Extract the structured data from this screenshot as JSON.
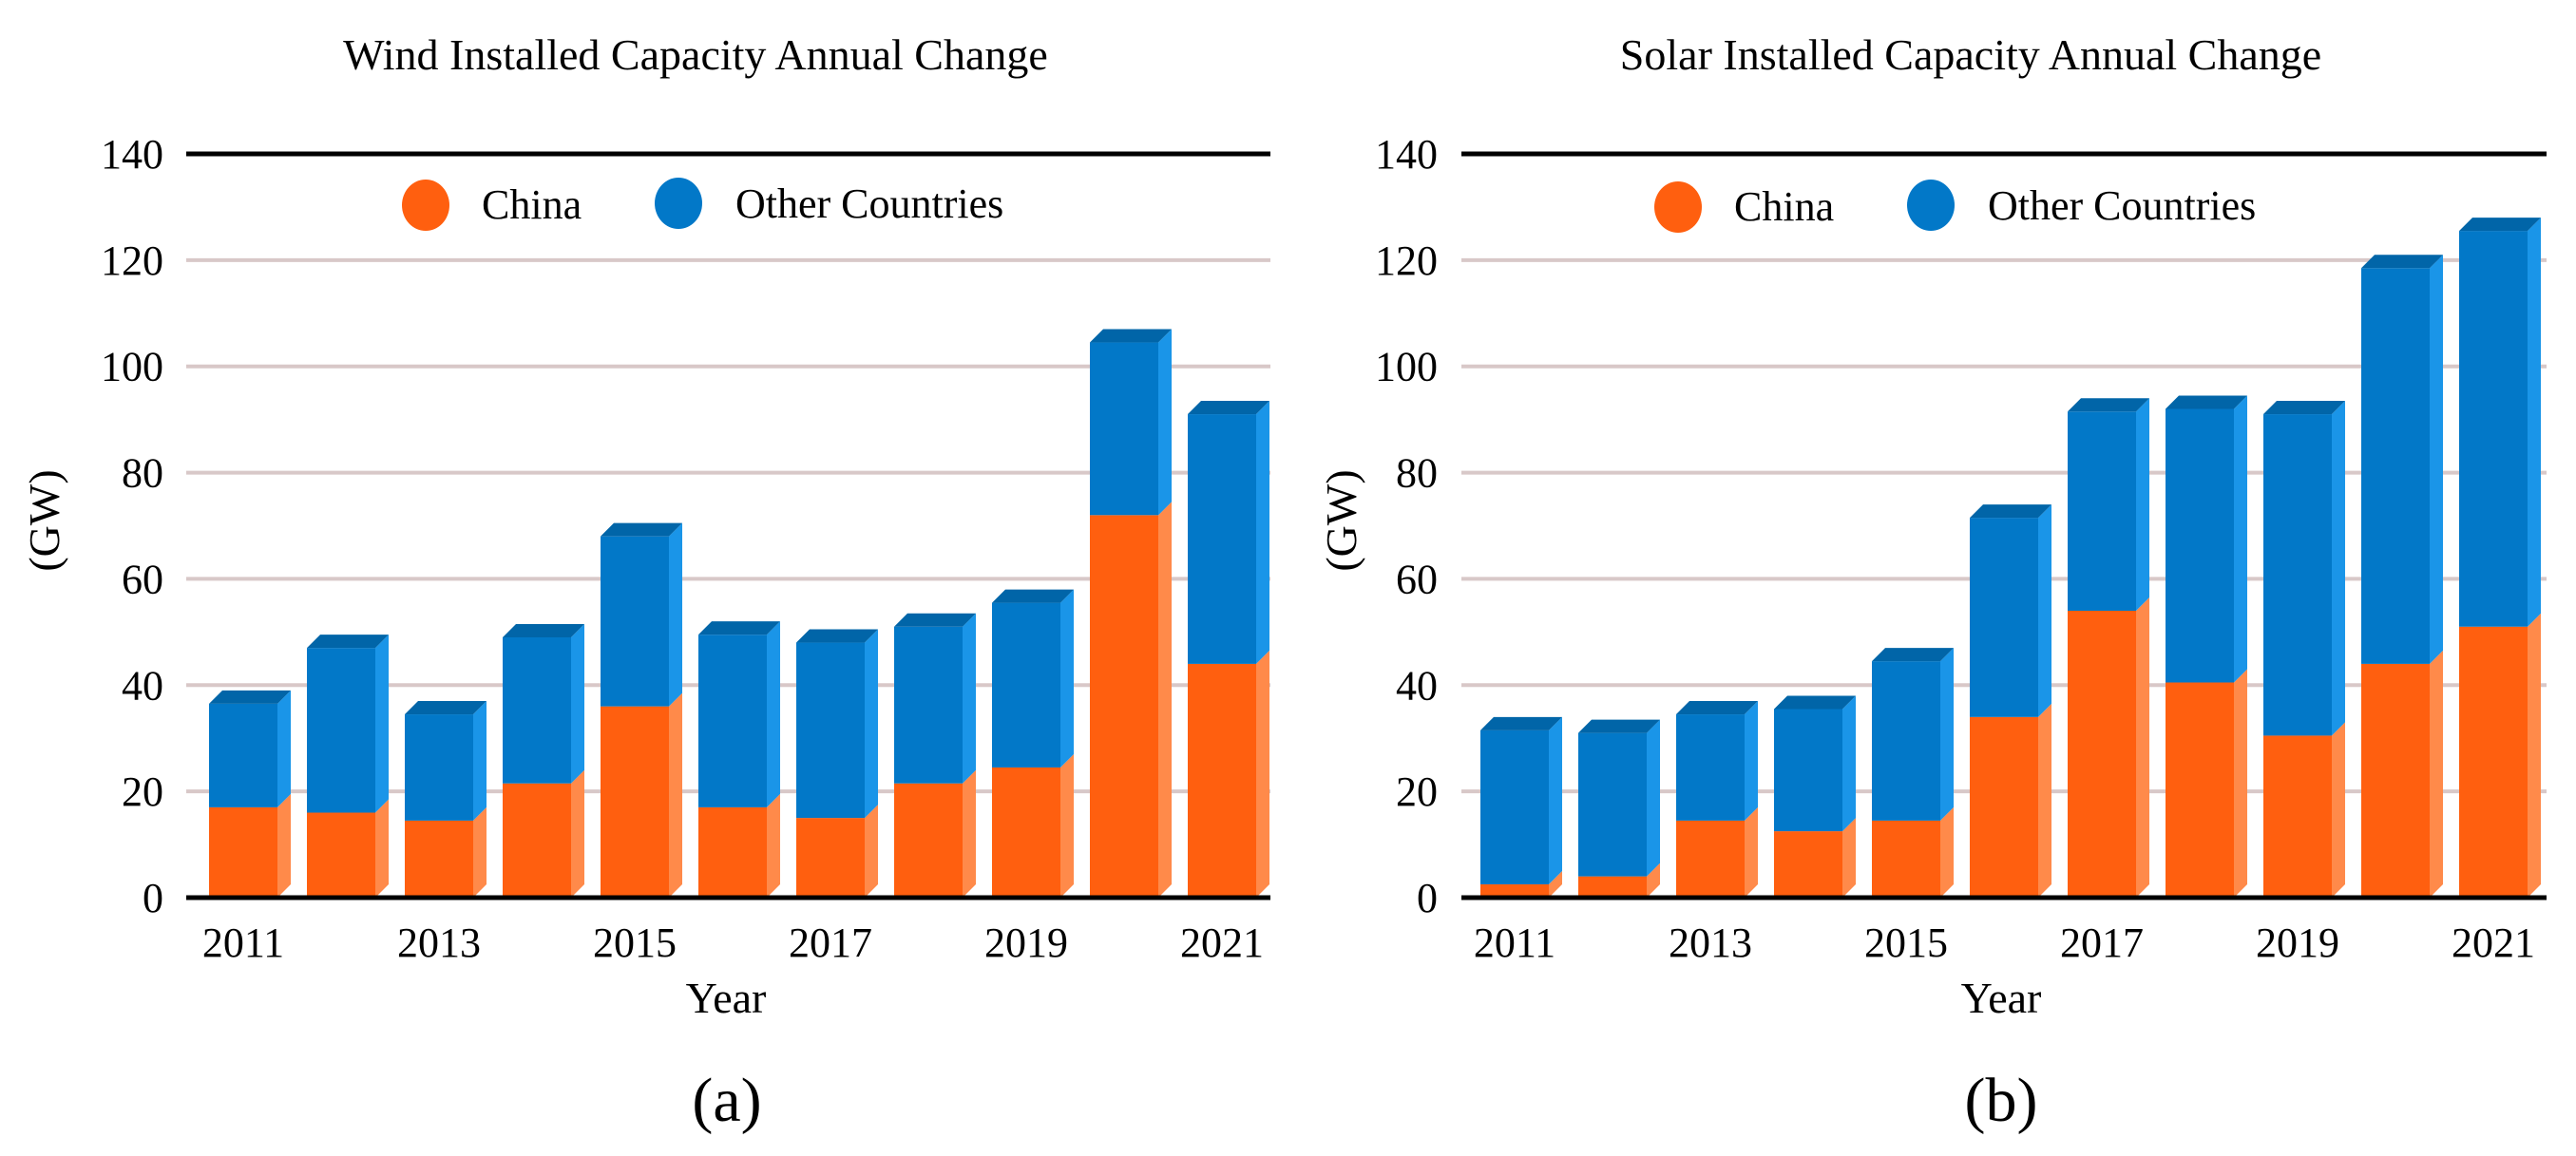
{
  "colors": {
    "china_front": "#FF5F0F",
    "china_side": "#FF8A4A",
    "other_front": "#0278C8",
    "other_side": "#1A95E8",
    "other_top": "#0165A8",
    "grid": "#D8C8C8",
    "axis": "#000000"
  },
  "chart_data": [
    {
      "type": "bar",
      "stacked": true,
      "title": "Wind Installed Capacity Annual Change",
      "xlabel": "Year",
      "ylabel": "(GW)",
      "caption": "(a)",
      "ylim": [
        0,
        140
      ],
      "yticks": [
        "0",
        "20",
        "40",
        "60",
        "80",
        "100",
        "120",
        "140"
      ],
      "categories": [
        "2011",
        "2012",
        "2013",
        "2014",
        "2015",
        "2016",
        "2017",
        "2018",
        "2019",
        "2020",
        "2021"
      ],
      "xtick_labels": [
        "2011",
        "2013",
        "2015",
        "2017",
        "2019",
        "2021"
      ],
      "grid": true,
      "legend": "top-center",
      "series": [
        {
          "name": "China",
          "values": [
            17,
            16,
            14.5,
            21.5,
            36,
            17,
            15,
            21.5,
            24.5,
            72,
            44
          ]
        },
        {
          "name": "Other Countries",
          "values": [
            19.5,
            31,
            20,
            27.5,
            32,
            32.5,
            33,
            29.5,
            31,
            32.5,
            47
          ]
        }
      ]
    },
    {
      "type": "bar",
      "stacked": true,
      "title": "Solar Installed Capacity Annual Change",
      "xlabel": "Year",
      "ylabel": "(GW)",
      "caption": "(b)",
      "ylim": [
        0,
        140
      ],
      "yticks": [
        "0",
        "20",
        "40",
        "60",
        "80",
        "100",
        "120",
        "140"
      ],
      "categories": [
        "2011",
        "2012",
        "2013",
        "2014",
        "2015",
        "2016",
        "2017",
        "2018",
        "2019",
        "2020",
        "2021"
      ],
      "xtick_labels": [
        "2011",
        "2013",
        "2015",
        "2017",
        "2019",
        "2021"
      ],
      "grid": true,
      "legend": "top-center",
      "series": [
        {
          "name": "China",
          "values": [
            2.5,
            4,
            14.5,
            12.5,
            14.5,
            34,
            54,
            40.5,
            30.5,
            44,
            51
          ]
        },
        {
          "name": "Other Countries",
          "values": [
            29,
            27,
            20,
            23,
            30,
            37.5,
            37.5,
            51.5,
            60.5,
            74.5,
            74.5
          ]
        }
      ]
    }
  ]
}
